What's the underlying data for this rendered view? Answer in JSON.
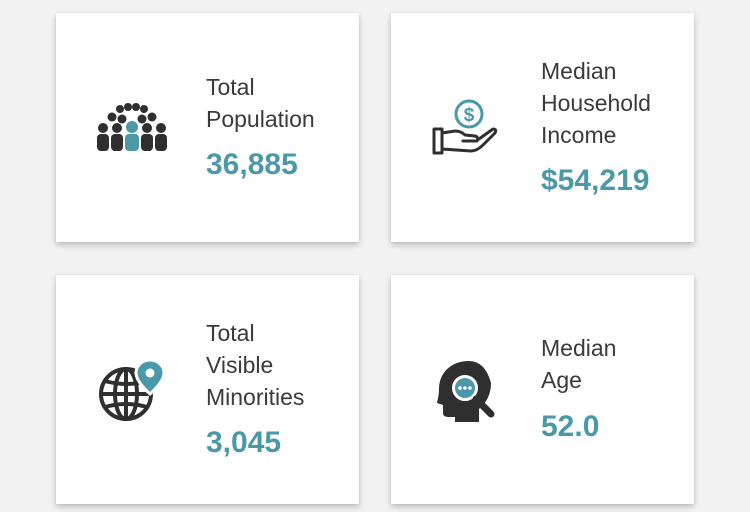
{
  "colors": {
    "accent": "#4a98a8",
    "icon_dark": "#2f2f2f",
    "label": "#3a3a3a",
    "card": "#ffffff",
    "page": "#f2f2f2"
  },
  "cards": [
    {
      "label": "Total\nPopulation",
      "value": "36,885",
      "icon": "population-icon"
    },
    {
      "label": "Median\nHousehold\nIncome",
      "value": "$54,219",
      "icon": "hand-coin-icon"
    },
    {
      "label": "Total\nVisible\nMinorities",
      "value": "3,045",
      "icon": "globe-pin-icon"
    },
    {
      "label": "Median\nAge",
      "value": "52.0",
      "icon": "head-magnifier-icon"
    }
  ]
}
